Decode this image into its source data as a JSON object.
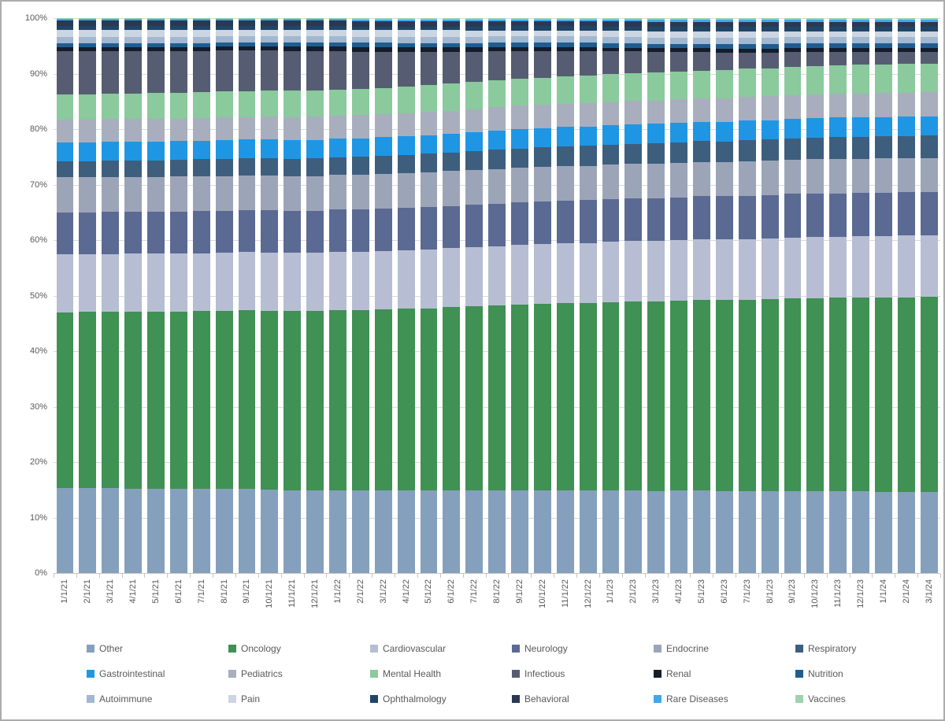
{
  "chart_data": {
    "type": "bar",
    "subtype": "stacked-100",
    "title": "",
    "xlabel": "",
    "ylabel": "",
    "ylim": [
      0,
      100
    ],
    "grid": "horizontal",
    "legend_position": "bottom",
    "legend_columns": 6,
    "y_axis": {
      "ticks": [
        "100%",
        "90%",
        "80%",
        "70%",
        "60%",
        "50%",
        "40%",
        "30%",
        "20%",
        "10%",
        "0%"
      ]
    },
    "categories": [
      "1/1/21",
      "2/1/21",
      "3/1/21",
      "4/1/21",
      "5/1/21",
      "6/1/21",
      "7/1/21",
      "8/1/21",
      "9/1/21",
      "10/1/21",
      "11/1/21",
      "12/1/21",
      "1/1/22",
      "2/1/22",
      "3/1/22",
      "4/1/22",
      "5/1/22",
      "6/1/22",
      "7/1/22",
      "8/1/22",
      "9/1/22",
      "10/1/22",
      "11/1/22",
      "12/1/22",
      "1/1/23",
      "2/1/23",
      "3/1/23",
      "4/1/23",
      "5/1/23",
      "6/1/23",
      "7/1/23",
      "8/1/23",
      "9/1/23",
      "10/1/23",
      "11/1/23",
      "12/1/23",
      "1/1/24",
      "2/1/24",
      "3/1/24"
    ],
    "series": [
      {
        "name": "Other",
        "color": "#85A0BC",
        "values": [
          15.3,
          15.3,
          15.3,
          15.2,
          15.2,
          15.2,
          15.2,
          15.2,
          15.2,
          15.1,
          15.1,
          15.1,
          15.1,
          15.1,
          15.0,
          15.0,
          15.0,
          15.0,
          15.0,
          15.0,
          14.9,
          14.9,
          14.9,
          14.9,
          14.9,
          14.8,
          14.8,
          14.8,
          14.8,
          14.8,
          14.7,
          14.7,
          14.7,
          14.7,
          14.7,
          14.7,
          14.6,
          14.6,
          14.6
        ]
      },
      {
        "name": "Oncology",
        "color": "#3F9154",
        "values": [
          31.7,
          31.8,
          31.9,
          32.0,
          32.1,
          32.2,
          32.3,
          32.3,
          32.4,
          32.5,
          32.6,
          32.7,
          32.8,
          32.9,
          33.0,
          33.1,
          33.2,
          33.3,
          33.4,
          33.4,
          33.5,
          33.6,
          33.7,
          33.8,
          33.9,
          34.0,
          34.1,
          34.2,
          34.3,
          34.4,
          34.5,
          34.6,
          34.6,
          34.7,
          34.8,
          34.9,
          35.0,
          35.1,
          35.2
        ]
      },
      {
        "name": "Cardiovascular",
        "color": "#B7BED3",
        "values": [
          10.4,
          10.4,
          10.4,
          10.5,
          10.5,
          10.5,
          10.5,
          10.5,
          10.5,
          10.6,
          10.6,
          10.6,
          10.6,
          10.6,
          10.7,
          10.7,
          10.7,
          10.7,
          10.7,
          10.7,
          10.8,
          10.8,
          10.8,
          10.8,
          10.8,
          10.9,
          10.9,
          10.9,
          10.9,
          10.9,
          11.0,
          11.0,
          11.0,
          11.0,
          11.0,
          11.0,
          11.1,
          11.1,
          11.1
        ]
      },
      {
        "name": "Neurology",
        "color": "#5A6A93",
        "values": [
          7.6,
          7.6,
          7.6,
          7.6,
          7.6,
          7.6,
          7.6,
          7.6,
          7.6,
          7.6,
          7.7,
          7.7,
          7.7,
          7.7,
          7.7,
          7.7,
          7.7,
          7.7,
          7.7,
          7.7,
          7.7,
          7.7,
          7.7,
          7.7,
          7.7,
          7.7,
          7.7,
          7.7,
          7.7,
          7.8,
          7.8,
          7.8,
          7.8,
          7.8,
          7.8,
          7.8,
          7.8,
          7.8,
          7.8
        ]
      },
      {
        "name": "Endocrine",
        "color": "#9CA5B8",
        "values": [
          6.3,
          6.3,
          6.3,
          6.3,
          6.3,
          6.3,
          6.3,
          6.3,
          6.3,
          6.3,
          6.3,
          6.3,
          6.3,
          6.3,
          6.3,
          6.3,
          6.3,
          6.3,
          6.3,
          6.2,
          6.2,
          6.2,
          6.2,
          6.2,
          6.2,
          6.2,
          6.2,
          6.2,
          6.2,
          6.2,
          6.2,
          6.2,
          6.2,
          6.2,
          6.2,
          6.2,
          6.2,
          6.2,
          6.2
        ]
      },
      {
        "name": "Respiratory",
        "color": "#3E5E7E",
        "values": [
          2.9,
          2.9,
          3.0,
          3.0,
          3.0,
          3.0,
          3.1,
          3.1,
          3.1,
          3.2,
          3.2,
          3.2,
          3.2,
          3.3,
          3.3,
          3.3,
          3.4,
          3.4,
          3.4,
          3.5,
          3.5,
          3.5,
          3.5,
          3.6,
          3.6,
          3.6,
          3.7,
          3.7,
          3.7,
          3.7,
          3.8,
          3.8,
          3.8,
          3.9,
          3.9,
          3.9,
          3.9,
          4.0,
          4.0
        ]
      },
      {
        "name": "Gastrointestinal",
        "color": "#1F96E4",
        "values": [
          3.4,
          3.4,
          3.4,
          3.4,
          3.4,
          3.4,
          3.4,
          3.4,
          3.4,
          3.4,
          3.4,
          3.4,
          3.4,
          3.4,
          3.4,
          3.4,
          3.4,
          3.4,
          3.4,
          3.5,
          3.5,
          3.5,
          3.5,
          3.5,
          3.5,
          3.5,
          3.5,
          3.5,
          3.5,
          3.5,
          3.5,
          3.5,
          3.5,
          3.5,
          3.5,
          3.5,
          3.5,
          3.5,
          3.5
        ]
      },
      {
        "name": "Pediatrics",
        "color": "#A8AEBD",
        "values": [
          4.1,
          4.1,
          4.1,
          4.1,
          4.1,
          4.1,
          4.1,
          4.1,
          4.1,
          4.1,
          4.2,
          4.2,
          4.2,
          4.2,
          4.2,
          4.2,
          4.2,
          4.2,
          4.2,
          4.2,
          4.2,
          4.2,
          4.2,
          4.2,
          4.2,
          4.2,
          4.2,
          4.2,
          4.2,
          4.3,
          4.3,
          4.3,
          4.3,
          4.3,
          4.3,
          4.3,
          4.3,
          4.3,
          4.3
        ]
      },
      {
        "name": "Mental Health",
        "color": "#8ACA9D",
        "values": [
          4.6,
          4.6,
          4.6,
          4.6,
          4.7,
          4.7,
          4.7,
          4.7,
          4.7,
          4.7,
          4.8,
          4.8,
          4.8,
          4.8,
          4.8,
          4.8,
          4.9,
          4.9,
          4.9,
          4.9,
          4.9,
          4.9,
          4.9,
          5.0,
          5.0,
          5.0,
          5.0,
          5.0,
          5.0,
          5.1,
          5.1,
          5.1,
          5.1,
          5.1,
          5.1,
          5.2,
          5.2,
          5.2,
          5.2
        ]
      },
      {
        "name": "Infectious",
        "color": "#565D72",
        "values": [
          7.7,
          7.7,
          7.6,
          7.6,
          7.5,
          7.5,
          7.4,
          7.4,
          7.3,
          7.3,
          7.2,
          7.2,
          7.0,
          6.8,
          6.6,
          6.4,
          6.1,
          5.8,
          5.5,
          5.3,
          5.0,
          4.8,
          4.6,
          4.4,
          4.1,
          3.9,
          3.7,
          3.5,
          3.3,
          3.1,
          2.9,
          2.8,
          2.6,
          2.5,
          2.4,
          2.3,
          2.2,
          2.1,
          2.1
        ]
      },
      {
        "name": "Renal",
        "color": "#151D2C",
        "values": [
          0.8,
          0.8,
          0.8,
          0.8,
          0.8,
          0.8,
          0.8,
          0.8,
          0.8,
          0.8,
          0.8,
          0.8,
          0.8,
          0.8,
          0.8,
          0.8,
          0.8,
          0.8,
          0.8,
          0.7,
          0.7,
          0.7,
          0.7,
          0.7,
          0.7,
          0.7,
          0.7,
          0.7,
          0.7,
          0.7,
          0.7,
          0.7,
          0.7,
          0.7,
          0.7,
          0.7,
          0.7,
          0.7,
          0.7
        ]
      },
      {
        "name": "Nutrition",
        "color": "#1F5D90",
        "values": [
          0.7,
          0.7,
          0.7,
          0.7,
          0.7,
          0.7,
          0.7,
          0.7,
          0.7,
          0.7,
          0.8,
          0.8,
          0.8,
          0.8,
          0.8,
          0.8,
          0.8,
          0.8,
          0.8,
          0.8,
          0.8,
          0.8,
          0.8,
          0.8,
          0.8,
          0.8,
          0.8,
          0.8,
          0.8,
          0.9,
          0.9,
          0.9,
          0.9,
          0.9,
          0.9,
          0.9,
          0.9,
          0.9,
          0.9
        ]
      },
      {
        "name": "Autoimmune",
        "color": "#A1B8D0",
        "values": [
          1.1,
          1.1,
          1.1,
          1.1,
          1.1,
          1.1,
          1.1,
          1.1,
          1.1,
          1.1,
          1.1,
          1.1,
          1.1,
          1.1,
          1.1,
          1.1,
          1.1,
          1.1,
          1.1,
          1.1,
          1.1,
          1.1,
          1.1,
          1.1,
          1.1,
          1.1,
          1.1,
          1.1,
          1.1,
          1.1,
          1.1,
          1.1,
          1.1,
          1.1,
          1.1,
          1.1,
          1.1,
          1.1,
          1.1
        ]
      },
      {
        "name": "Pain",
        "color": "#CCD5E2",
        "values": [
          1.3,
          1.3,
          1.3,
          1.3,
          1.3,
          1.3,
          1.3,
          1.2,
          1.2,
          1.2,
          1.2,
          1.2,
          1.2,
          1.2,
          1.2,
          1.2,
          1.2,
          1.2,
          1.2,
          1.1,
          1.1,
          1.1,
          1.1,
          1.1,
          1.1,
          1.1,
          1.1,
          1.1,
          1.1,
          1.1,
          1.1,
          1.1,
          1.0,
          1.0,
          1.0,
          1.0,
          1.0,
          1.0,
          1.0
        ]
      },
      {
        "name": "Ophthalmology",
        "color": "#204667",
        "values": [
          0.7,
          0.7,
          0.7,
          0.7,
          0.7,
          0.7,
          0.7,
          0.7,
          0.7,
          0.7,
          0.7,
          0.7,
          0.7,
          0.7,
          0.7,
          0.7,
          0.7,
          0.7,
          0.7,
          0.8,
          0.8,
          0.8,
          0.8,
          0.8,
          0.8,
          0.8,
          0.8,
          0.8,
          0.8,
          0.8,
          0.8,
          0.8,
          0.8,
          0.8,
          0.8,
          0.8,
          0.8,
          0.8,
          0.8
        ]
      },
      {
        "name": "Behavioral",
        "color": "#2A3951",
        "values": [
          1.0,
          1.0,
          1.0,
          1.0,
          1.0,
          1.0,
          1.0,
          1.0,
          1.0,
          1.0,
          1.0,
          1.0,
          1.0,
          1.0,
          1.0,
          1.0,
          1.0,
          1.0,
          1.0,
          0.9,
          0.9,
          0.9,
          0.9,
          0.9,
          0.9,
          0.9,
          0.9,
          0.9,
          0.9,
          0.9,
          0.9,
          0.9,
          0.9,
          0.9,
          0.9,
          0.9,
          0.9,
          0.9,
          0.9
        ]
      },
      {
        "name": "Rare Diseases",
        "color": "#3FA8EB",
        "values": [
          0.3,
          0.3,
          0.3,
          0.3,
          0.3,
          0.3,
          0.3,
          0.3,
          0.3,
          0.3,
          0.3,
          0.3,
          0.3,
          0.3,
          0.3,
          0.3,
          0.3,
          0.3,
          0.3,
          0.3,
          0.3,
          0.3,
          0.3,
          0.3,
          0.4,
          0.4,
          0.4,
          0.4,
          0.4,
          0.4,
          0.4,
          0.4,
          0.4,
          0.4,
          0.4,
          0.4,
          0.4,
          0.4,
          0.4
        ]
      },
      {
        "name": "Vaccines",
        "color": "#9FD2AE",
        "values": [
          0.1,
          0.1,
          0.1,
          0.1,
          0.1,
          0.1,
          0.1,
          0.1,
          0.1,
          0.1,
          0.1,
          0.1,
          0.1,
          0.2,
          0.2,
          0.2,
          0.2,
          0.2,
          0.2,
          0.2,
          0.2,
          0.2,
          0.2,
          0.2,
          0.2,
          0.2,
          0.3,
          0.3,
          0.3,
          0.3,
          0.3,
          0.3,
          0.3,
          0.3,
          0.3,
          0.3,
          0.3,
          0.3,
          0.3
        ]
      }
    ],
    "style": {
      "grid_color": "#D9D9D9",
      "axis_line_color": "#C6C6C6",
      "text_color": "#595959",
      "frame_border_color": "#ACACAC",
      "background": "#FFFFFF"
    }
  }
}
